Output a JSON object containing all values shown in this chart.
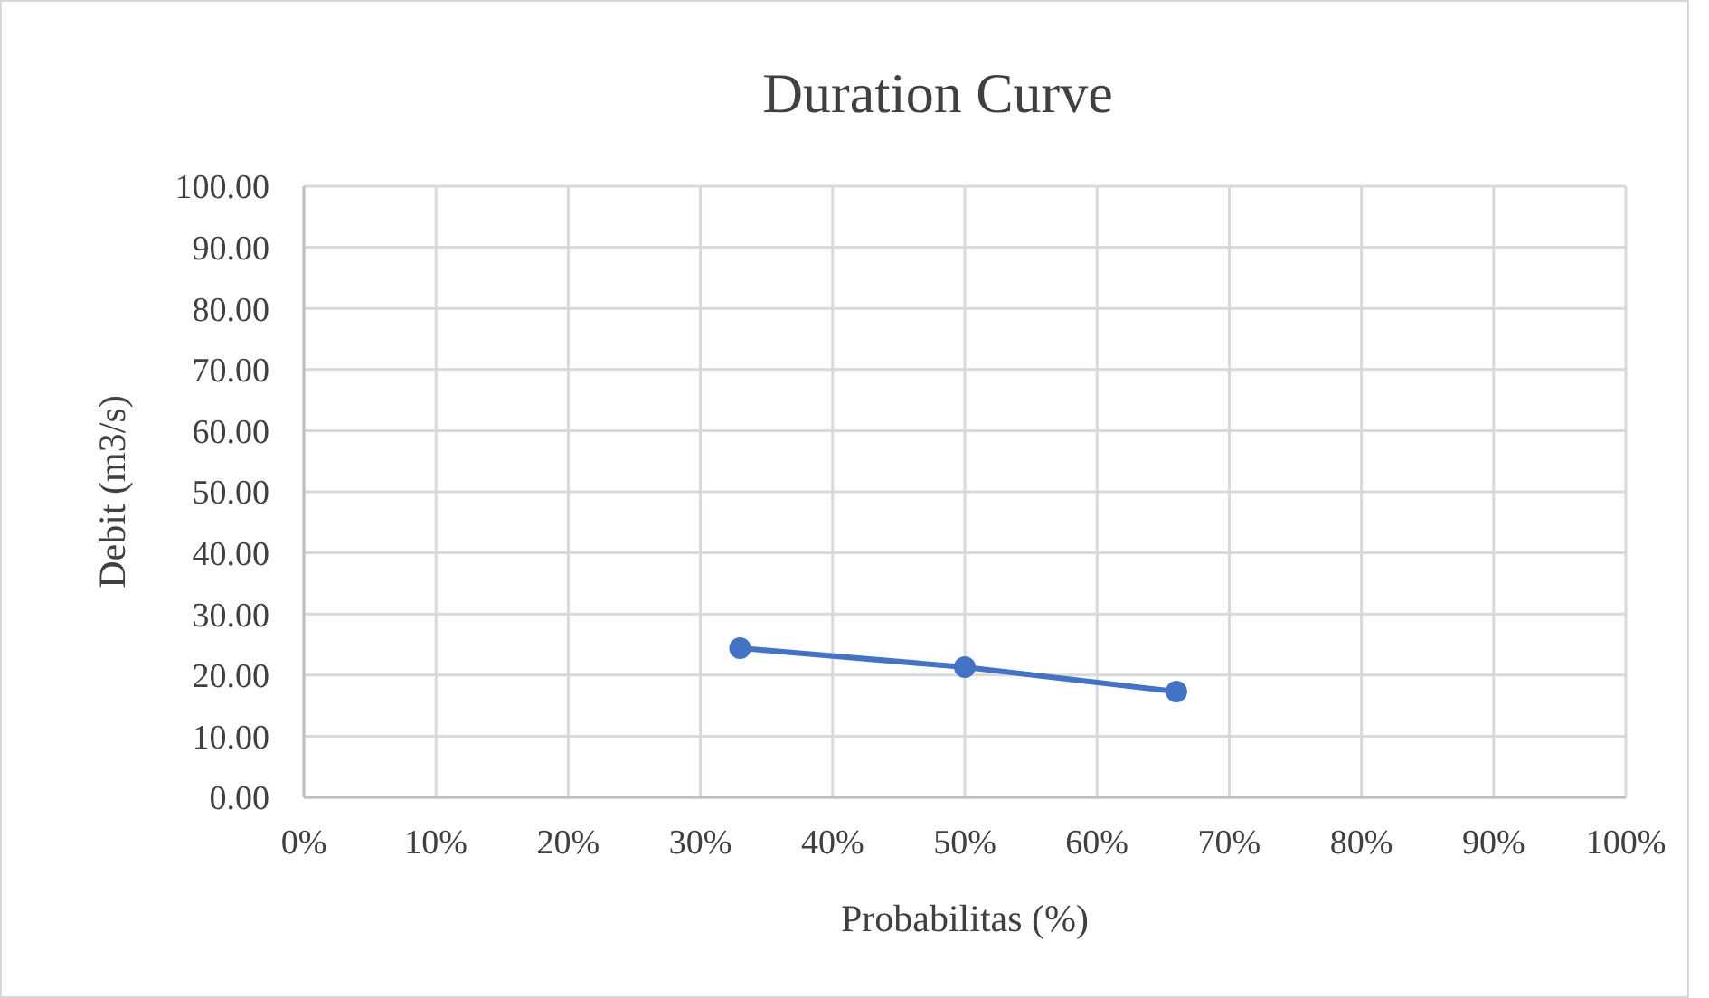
{
  "chart_data": {
    "type": "line",
    "title": "Duration Curve",
    "xlabel": "Probabilitas (%)",
    "ylabel": "Debit (m3/s)",
    "x": [
      33,
      50,
      66
    ],
    "series": [
      {
        "color": "#4472c4",
        "values": [
          24.4,
          21.3,
          17.3
        ]
      }
    ],
    "xlim": [
      0,
      100
    ],
    "xticks": [
      {
        "value": 0,
        "label": "0%"
      },
      {
        "value": 10,
        "label": "10%"
      },
      {
        "value": 20,
        "label": "20%"
      },
      {
        "value": 30,
        "label": "30%"
      },
      {
        "value": 40,
        "label": "40%"
      },
      {
        "value": 50,
        "label": "50%"
      },
      {
        "value": 60,
        "label": "60%"
      },
      {
        "value": 70,
        "label": "70%"
      },
      {
        "value": 80,
        "label": "80%"
      },
      {
        "value": 90,
        "label": "90%"
      },
      {
        "value": 100,
        "label": "100%"
      }
    ],
    "ylim": [
      0,
      100
    ],
    "yticks": [
      {
        "value": 0,
        "label": "0.00"
      },
      {
        "value": 10,
        "label": "10.00"
      },
      {
        "value": 20,
        "label": "20.00"
      },
      {
        "value": 30,
        "label": "30.00"
      },
      {
        "value": 40,
        "label": "40.00"
      },
      {
        "value": 50,
        "label": "50.00"
      },
      {
        "value": 60,
        "label": "60.00"
      },
      {
        "value": 70,
        "label": "70.00"
      },
      {
        "value": 80,
        "label": "80.00"
      },
      {
        "value": 90,
        "label": "90.00"
      },
      {
        "value": 100,
        "label": "100.00"
      }
    ],
    "grid": true,
    "marker": "circle",
    "line_style": "solid"
  }
}
